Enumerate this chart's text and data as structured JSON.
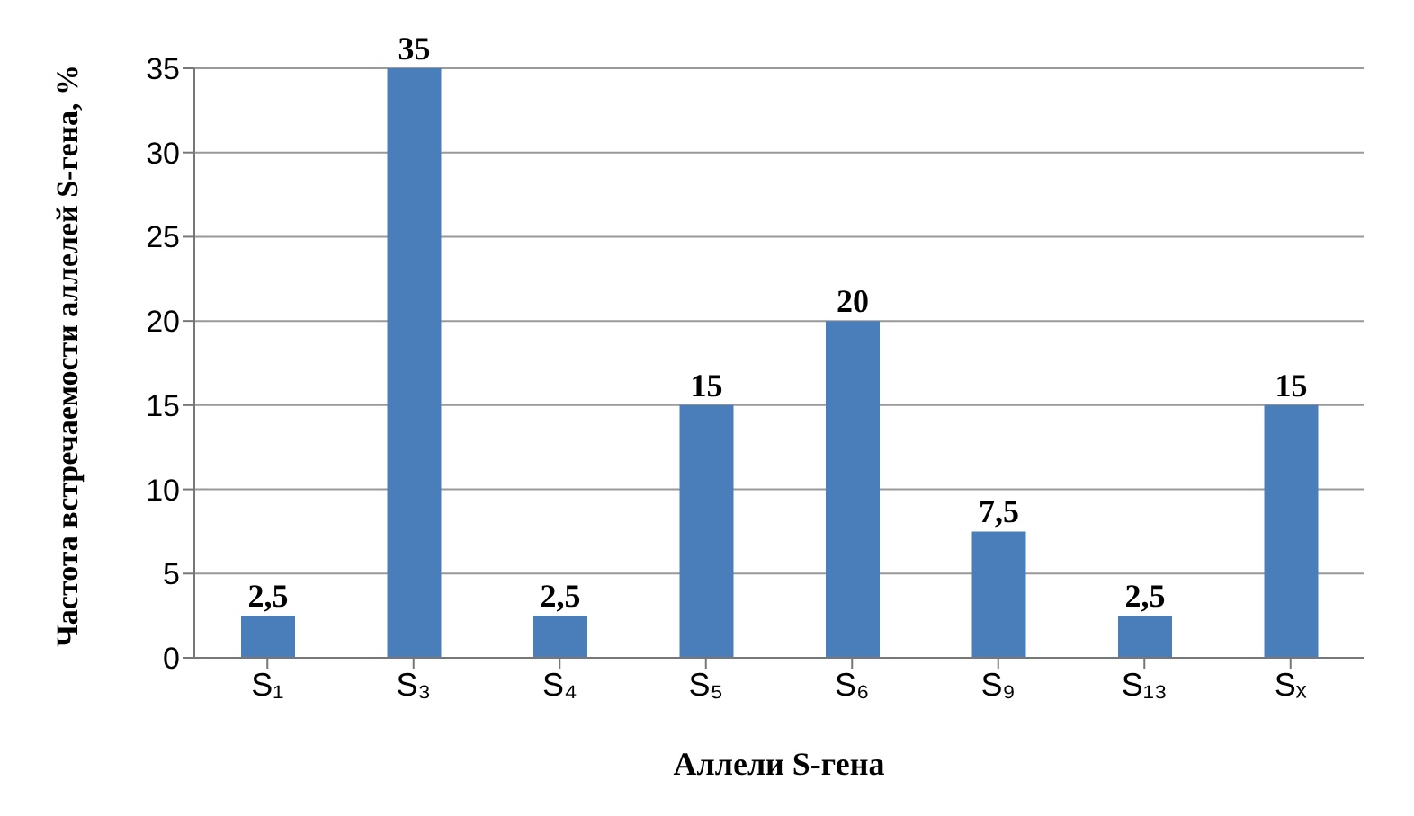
{
  "chart_data": {
    "type": "bar",
    "xlabel": "Аллели S-гена",
    "ylabel": "Частота встречаемости аллелей S-гена, %",
    "categories": [
      "S₁",
      "S₃",
      "S₄",
      "S₅",
      "S₆",
      "S₉",
      "S₁₃",
      "Sₓ"
    ],
    "values": [
      2.5,
      35,
      2.5,
      15,
      20,
      7.5,
      2.5,
      15
    ],
    "value_labels": [
      "2,5",
      "35",
      "2,5",
      "15",
      "20",
      "7,5",
      "2,5",
      "15"
    ],
    "color": "#4a7ebb",
    "ylim": [
      0,
      35
    ],
    "yticks": [
      0,
      5,
      10,
      15,
      20,
      25,
      30,
      35
    ],
    "grid": "y"
  }
}
